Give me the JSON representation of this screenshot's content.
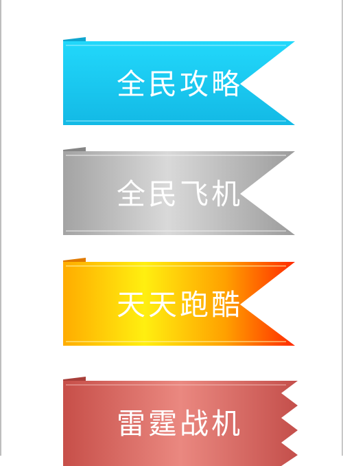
{
  "ribbons": [
    {
      "label": "全民攻略",
      "color_top": "#1ed6fa",
      "color_bottom": "#14bde7",
      "fold_color": "#0ea8d2"
    },
    {
      "label": "全民飞机",
      "color_top": "#d7d7d7",
      "color_bottom": "#9a9a9a",
      "fold_color": "#8a8a8a"
    },
    {
      "label": "天天跑酷",
      "color_left": "#ffb000",
      "color_mid": "#fff000",
      "color_right": "#ff3300",
      "fold_color": "#e07800"
    },
    {
      "label": "雷霆战机",
      "color_left": "#c9524c",
      "color_mid": "#e9867e",
      "color_right": "#c2504c",
      "fold_color": "#b0443f"
    }
  ]
}
